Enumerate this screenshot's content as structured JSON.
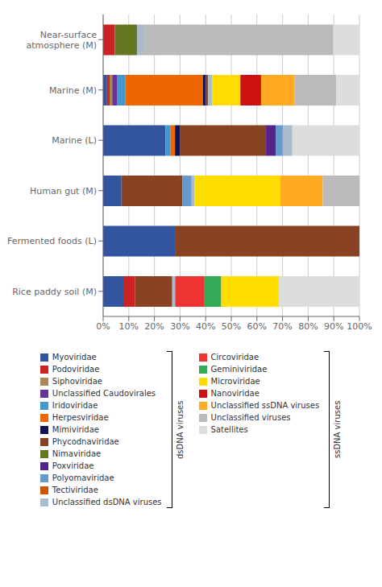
{
  "chart_data": {
    "type": "bar",
    "orientation": "horizontal",
    "stacked": true,
    "grid": true,
    "legend": "bottom",
    "categories": [
      "Near-surface\natmosphere (M)",
      "Marine (M)",
      "Marine (L)",
      "Human gut (M)",
      "Fermented foods (L)",
      "Rice paddy soil (M)"
    ],
    "xlim": [
      0,
      100
    ],
    "xticks": [
      {
        "value": 0,
        "label": "0%"
      },
      {
        "value": 10,
        "label": "10%"
      },
      {
        "value": 20,
        "label": "20%"
      },
      {
        "value": 30,
        "label": "30%"
      },
      {
        "value": 40,
        "label": "40%"
      },
      {
        "value": 50,
        "label": "50%"
      },
      {
        "value": 60,
        "label": "60%"
      },
      {
        "value": 70,
        "label": "70%"
      },
      {
        "value": 80,
        "label": "80%"
      },
      {
        "value": 90,
        "label": "90%"
      },
      {
        "value": 100,
        "label": "100%"
      }
    ],
    "series": [
      {
        "name": "Myoviridae",
        "color": "#3355a0",
        "values": [
          0,
          1.5151515151515151,
          24.299065420560748,
          7.142857142857143,
          28,
          7.865168539325843
        ]
      },
      {
        "name": "Podoviridae",
        "color": "#cc2222",
        "values": [
          4.568527918781726,
          1.0101010101010102,
          0,
          0,
          0,
          4.49438202247191
        ]
      },
      {
        "name": "Siphoviridae",
        "color": "#aa8855",
        "values": [
          0,
          1.0101010101010102,
          0,
          0,
          0,
          0
        ]
      },
      {
        "name": "Unclassified Caudovirales",
        "color": "#663399",
        "values": [
          0,
          2.0202020202020203,
          0,
          0,
          0,
          0
        ]
      },
      {
        "name": "Iridoviridae",
        "color": "#4499cc",
        "values": [
          0,
          3.0303030303030303,
          1.8691588785046729,
          0,
          0,
          0
        ]
      },
      {
        "name": "Herpesviridae",
        "color": "#ee6600",
        "values": [
          0,
          30.303030303030305,
          1.8691588785046729,
          0,
          0,
          0
        ]
      },
      {
        "name": "Mimiviridae",
        "color": "#111155",
        "values": [
          0,
          1.0101010101010102,
          1.8691588785046729,
          0,
          0,
          0
        ]
      },
      {
        "name": "Phycodnaviridae",
        "color": "#884422",
        "values": [
          0,
          1.0101010101010102,
          33.64485981308411,
          23.80952380952381,
          72,
          14.606741573033707
        ]
      },
      {
        "name": "Nimaviridae",
        "color": "#667722",
        "values": [
          8.629441624365482,
          0,
          0,
          0,
          0,
          0
        ]
      },
      {
        "name": "Poxviridae",
        "color": "#552288",
        "values": [
          0,
          0,
          3.7383177570093458,
          0,
          0,
          0
        ]
      },
      {
        "name": "Polyomaviridae",
        "color": "#6699cc",
        "values": [
          0,
          0,
          2.803738317757009,
          3.5714285714285716,
          0,
          0
        ]
      },
      {
        "name": "Tectiviridae",
        "color": "#cc5500",
        "values": [
          0,
          0,
          0,
          0,
          0,
          0
        ]
      },
      {
        "name": "Unclassified dsDNA viruses",
        "color": "#aabbcc",
        "values": [
          2.5380710659898478,
          1.5151515151515151,
          3.7383177570093458,
          1.1904761904761905,
          0,
          1.1235955056179776
        ]
      },
      {
        "name": "Circoviridae",
        "color": "#ee3333",
        "values": [
          0,
          0,
          0,
          0,
          0,
          11.235955056179776
        ]
      },
      {
        "name": "Geminiviridae",
        "color": "#33aa55",
        "values": [
          0,
          0,
          0,
          0,
          0,
          6.741573033707866
        ]
      },
      {
        "name": "Microviridae",
        "color": "#ffdd00",
        "values": [
          0,
          11.11111111111111,
          0,
          33.33333333333333,
          0,
          22.471910112359552
        ]
      },
      {
        "name": "Nanoviridae",
        "color": "#cc1111",
        "values": [
          0,
          8.080808080808081,
          0,
          0,
          0,
          0
        ]
      },
      {
        "name": "Unclassified ssDNA viruses",
        "color": "#ffaa22",
        "values": [
          0,
          13.131313131313133,
          0,
          16.666666666666664,
          0,
          0
        ]
      },
      {
        "name": "Unclassified viruses",
        "color": "#bbbbbb",
        "values": [
          74.11167512690355,
          16.161616161616163,
          0,
          14.285714285714286,
          0,
          0
        ]
      },
      {
        "name": "Satellites",
        "color": "#dddddd",
        "values": [
          10.15228426395939,
          9.090909090909092,
          26.16822429906542,
          0,
          0,
          31.46067415730337
        ]
      }
    ],
    "annotations": [
      {
        "text": "dsDNA viruses",
        "from": "Myoviridae",
        "to": "Unclassified dsDNA viruses"
      },
      {
        "text": "ssDNA viruses",
        "from": "Circoviridae",
        "to": "Satellites"
      }
    ]
  }
}
